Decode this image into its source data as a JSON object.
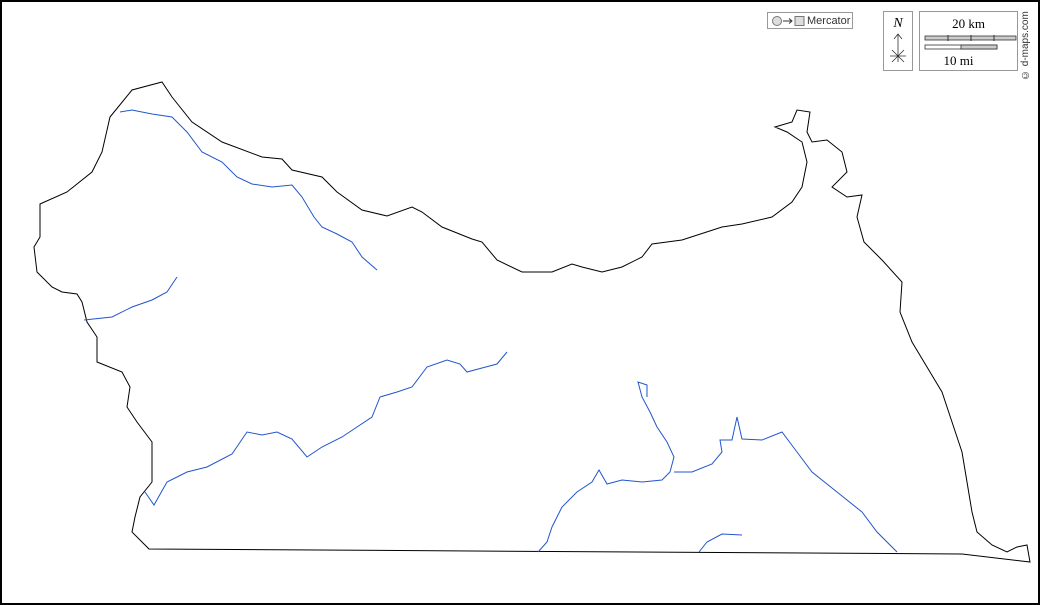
{
  "projection": {
    "label": "Mercator"
  },
  "north_arrow": {
    "label": "N"
  },
  "scale_bar": {
    "km_label": "20 km",
    "mi_label": "10 mi"
  },
  "credit": "© d-maps.com",
  "colors": {
    "border": "#000000",
    "rivers": "#2255cc",
    "background": "#ffffff"
  }
}
